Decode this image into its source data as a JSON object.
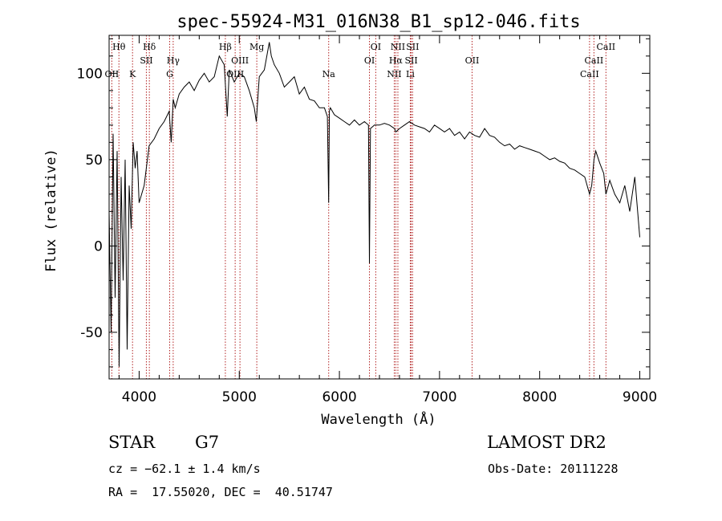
{
  "chart_data": {
    "type": "line",
    "title": "spec-55924-M31_016N38_B1_sp12-046.fits",
    "xlabel": "Wavelength (Å)",
    "ylabel": "Flux (relative)",
    "xlim": [
      3700,
      9100
    ],
    "ylim": [
      -77,
      122
    ],
    "x_ticks": [
      4000,
      5000,
      6000,
      7000,
      8000,
      9000
    ],
    "y_ticks": [
      -50,
      0,
      50,
      100
    ],
    "grid": false,
    "line_color": "#000000",
    "marker_color": "#b22222",
    "series": [
      {
        "x": [
          3700,
          3720,
          3740,
          3760,
          3780,
          3800,
          3820,
          3840,
          3860,
          3880,
          3900,
          3920,
          3940,
          3960,
          3980,
          4000,
          4050,
          4100,
          4150,
          4200,
          4250,
          4300,
          4320,
          4340,
          4360,
          4400,
          4450,
          4500,
          4550,
          4600,
          4650,
          4700,
          4750,
          4800,
          4850,
          4880,
          4900,
          4950,
          5000,
          5050,
          5100,
          5150,
          5170,
          5200,
          5250,
          5300,
          5320,
          5350,
          5400,
          5450,
          5500,
          5550,
          5600,
          5650,
          5700,
          5750,
          5800,
          5850,
          5880,
          5893,
          5900,
          5910,
          5950,
          6000,
          6050,
          6100,
          6150,
          6200,
          6250,
          6290,
          6300,
          6310,
          6350,
          6400,
          6450,
          6500,
          6550,
          6563,
          6600,
          6650,
          6700,
          6750,
          6800,
          6850,
          6900,
          6950,
          7000,
          7050,
          7100,
          7150,
          7200,
          7250,
          7300,
          7350,
          7400,
          7450,
          7500,
          7550,
          7600,
          7650,
          7700,
          7750,
          7800,
          7850,
          7900,
          7950,
          8000,
          8050,
          8100,
          8150,
          8200,
          8250,
          8300,
          8350,
          8400,
          8450,
          8498,
          8520,
          8542,
          8560,
          8600,
          8640,
          8662,
          8700,
          8750,
          8800,
          8850,
          8900,
          8950,
          9000
        ],
        "values": [
          20,
          -50,
          65,
          -30,
          55,
          -70,
          40,
          -20,
          50,
          -60,
          35,
          10,
          60,
          45,
          55,
          25,
          35,
          58,
          62,
          68,
          72,
          78,
          60,
          85,
          80,
          88,
          92,
          95,
          90,
          96,
          100,
          95,
          98,
          110,
          105,
          75,
          102,
          95,
          100,
          98,
          90,
          80,
          72,
          98,
          102,
          118,
          110,
          105,
          100,
          92,
          95,
          98,
          88,
          92,
          85,
          84,
          80,
          80,
          75,
          25,
          78,
          80,
          76,
          74,
          72,
          70,
          73,
          70,
          72,
          70,
          -10,
          68,
          70,
          70,
          71,
          70,
          68,
          66,
          68,
          70,
          72,
          70,
          69,
          68,
          66,
          70,
          68,
          66,
          68,
          64,
          66,
          62,
          66,
          64,
          63,
          68,
          64,
          63,
          60,
          58,
          59,
          56,
          58,
          57,
          56,
          55,
          54,
          52,
          50,
          51,
          49,
          48,
          45,
          44,
          42,
          40,
          30,
          35,
          50,
          55,
          48,
          42,
          30,
          38,
          30,
          25,
          35,
          20,
          40,
          5
        ]
      }
    ],
    "line_markers": [
      {
        "label": "Hθ",
        "x": 3798,
        "row": 0
      },
      {
        "label": "Hδ",
        "x": 4102,
        "row": 0
      },
      {
        "label": "Hβ",
        "x": 4861,
        "row": 0
      },
      {
        "label": "Mg",
        "x": 5175,
        "row": 0
      },
      {
        "label": "OI",
        "x": 6363,
        "row": 0
      },
      {
        "label": "NII",
        "x": 6584,
        "row": 0
      },
      {
        "label": "SII",
        "x": 6731,
        "row": 0
      },
      {
        "label": "CaII",
        "x": 8662,
        "row": 0
      },
      {
        "label": "SII",
        "x": 4072,
        "row": 1
      },
      {
        "label": "Hγ",
        "x": 4340,
        "row": 1
      },
      {
        "label": "OIII",
        "x": 5007,
        "row": 1
      },
      {
        "label": "OI",
        "x": 6300,
        "row": 1
      },
      {
        "label": "Hα",
        "x": 6563,
        "row": 1
      },
      {
        "label": "SII",
        "x": 6717,
        "row": 1
      },
      {
        "label": "OII",
        "x": 7325,
        "row": 1
      },
      {
        "label": "CaII",
        "x": 8542,
        "row": 1
      },
      {
        "label": "OII",
        "x": 3727,
        "row": 2
      },
      {
        "label": "K",
        "x": 3934,
        "row": 2
      },
      {
        "label": "G",
        "x": 4305,
        "row": 2
      },
      {
        "label": "OIII",
        "x": 4959,
        "row": 2
      },
      {
        "label": "Na",
        "x": 5893,
        "row": 2
      },
      {
        "label": "NII",
        "x": 6548,
        "row": 2
      },
      {
        "label": "Li",
        "x": 6708,
        "row": 2
      },
      {
        "label": "CaII",
        "x": 8498,
        "row": 2
      }
    ]
  },
  "info": {
    "class_label": "STAR",
    "subclass": "G7",
    "survey": "LAMOST DR2",
    "cz_text": "cz = −62.1 ± 1.4 km/s",
    "obs_date": "Obs-Date: 20111228",
    "radec": "RA =  17.55020, DEC =  40.51747"
  }
}
